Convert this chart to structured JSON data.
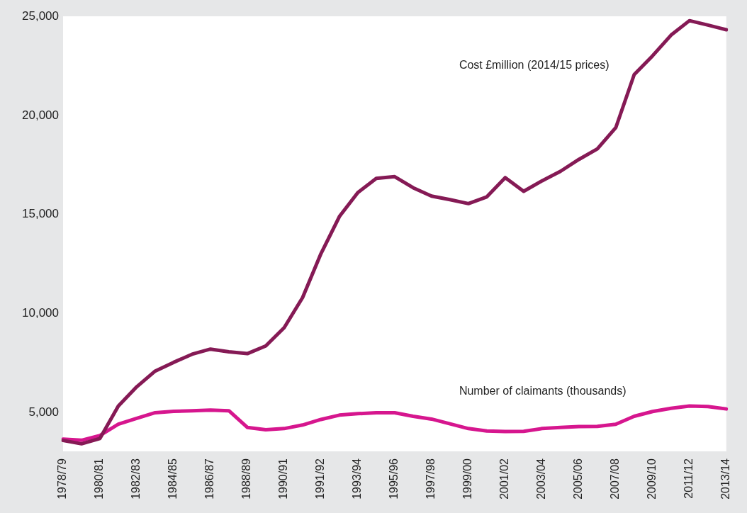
{
  "chart_data": {
    "type": "line",
    "categories": [
      "1978/79",
      null,
      "1980/81",
      null,
      "1982/83",
      null,
      "1984/85",
      null,
      "1986/87",
      null,
      "1988/89",
      null,
      "1990/91",
      null,
      "1991/92",
      null,
      "1993/94",
      null,
      "1995/96",
      null,
      "1997/98",
      null,
      "1999/00",
      null,
      "2001/02",
      null,
      "2003/04",
      null,
      "2005/06",
      null,
      "2007/08",
      null,
      "2009/10",
      null,
      "2011/12",
      null,
      "2013/14"
    ],
    "series": [
      {
        "name": "Cost £million (2014/15 prices)",
        "color": "#851a55",
        "values": [
          3600,
          3430,
          3700,
          5340,
          6310,
          7100,
          7540,
          7950,
          8210,
          8070,
          7980,
          8370,
          9290,
          10810,
          13030,
          14900,
          16110,
          16820,
          16910,
          16350,
          15930,
          15750,
          15550,
          15890,
          16860,
          16170,
          16700,
          17180,
          17780,
          18310,
          19380,
          22060,
          23010,
          24050,
          24780,
          24560,
          24320
        ]
      },
      {
        "name": "Number of claimants (thousands)",
        "color": "#d6168e",
        "values": [
          3670,
          3610,
          3850,
          4420,
          4720,
          5000,
          5070,
          5100,
          5130,
          5100,
          4260,
          4140,
          4200,
          4380,
          4660,
          4880,
          4950,
          5000,
          5000,
          4820,
          4680,
          4440,
          4200,
          4080,
          4050,
          4060,
          4200,
          4260,
          4300,
          4310,
          4420,
          4820,
          5060,
          5220,
          5340,
          5310,
          5190
        ]
      }
    ],
    "ylim": [
      3050,
      25000
    ],
    "yticks": [
      {
        "value": 5000,
        "label": "5,000"
      },
      {
        "value": 10000,
        "label": "10,000"
      },
      {
        "value": 15000,
        "label": "15,000"
      },
      {
        "value": 20000,
        "label": "20,000"
      },
      {
        "value": 25000,
        "label": "25,000"
      }
    ],
    "grid": false,
    "legend": false,
    "marker": "none",
    "line_style": "solid"
  }
}
